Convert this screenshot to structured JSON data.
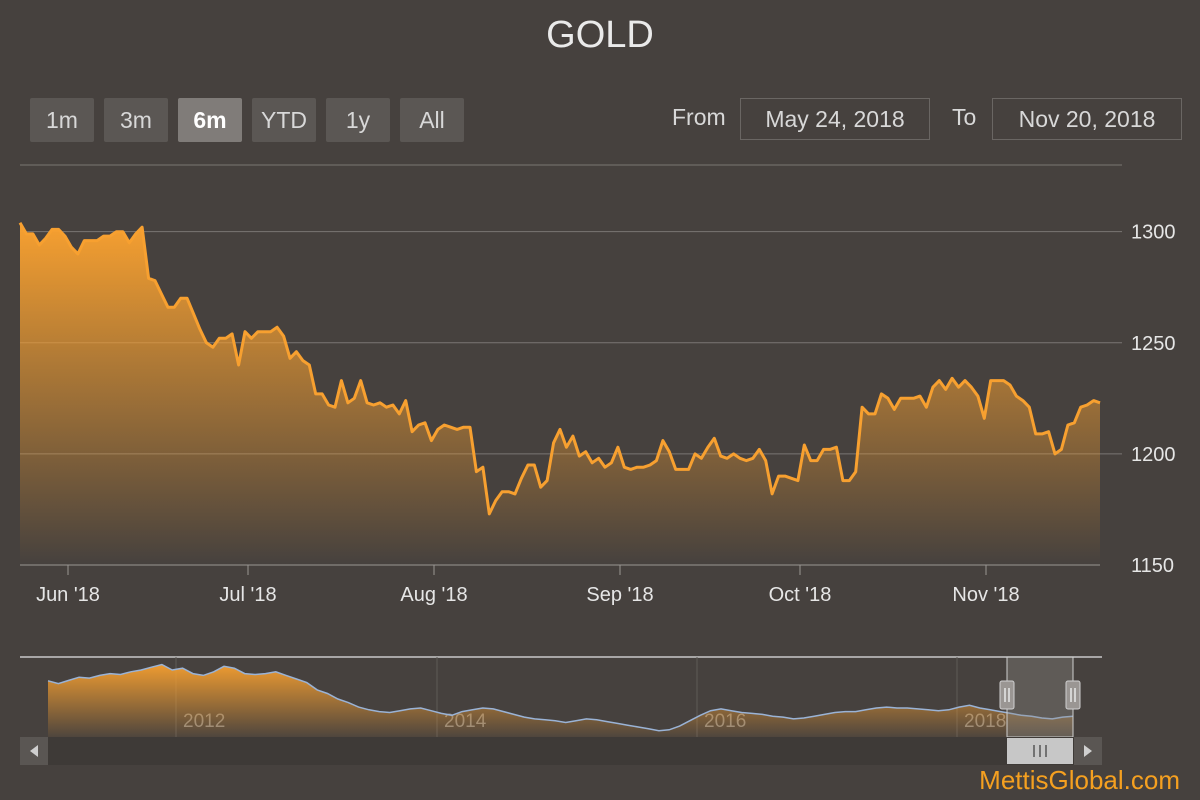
{
  "title": "GOLD",
  "range_buttons": [
    {
      "label": "1m",
      "active": false
    },
    {
      "label": "3m",
      "active": false
    },
    {
      "label": "6m",
      "active": true
    },
    {
      "label": "YTD",
      "active": false
    },
    {
      "label": "1y",
      "active": false
    },
    {
      "label": "All",
      "active": false
    }
  ],
  "range_inputs": {
    "from_label": "From",
    "from_value": "May 24, 2018",
    "to_label": "To",
    "to_value": "Nov 20, 2018"
  },
  "credit": "MettisGlobal.com",
  "colors": {
    "background": "#46413e",
    "line": "#f7a030",
    "navigator_line": "#9ab3d6",
    "credit": "#f5a020"
  },
  "chart_data": {
    "type": "area",
    "title": "GOLD",
    "x_start": "2018-05-24",
    "x_end": "2018-11-20",
    "ylim": [
      1150,
      1330
    ],
    "y_ticks": [
      1150,
      1200,
      1250,
      1300
    ],
    "y_tick_labels": [
      "1150",
      "1200",
      "1250",
      "1300"
    ],
    "x_ticks": [
      {
        "date": "2018-06-01",
        "label": "Jun '18"
      },
      {
        "date": "2018-07-01",
        "label": "Jul '18"
      },
      {
        "date": "2018-08-01",
        "label": "Aug '18"
      },
      {
        "date": "2018-09-01",
        "label": "Sep '18"
      },
      {
        "date": "2018-10-01",
        "label": "Oct '18"
      },
      {
        "date": "2018-11-01",
        "label": "Nov '18"
      }
    ],
    "grid": true,
    "series": [
      {
        "values": [
          1304,
          1299,
          1299,
          1294,
          1297,
          1301,
          1301,
          1298,
          1293,
          1290,
          1296,
          1296,
          1296,
          1298,
          1298,
          1300,
          1300,
          1295,
          1299,
          1302,
          1279,
          1278,
          1272,
          1266,
          1266,
          1270,
          1270,
          1263,
          1256,
          1250,
          1248,
          1252,
          1252,
          1254,
          1240,
          1255,
          1252,
          1255,
          1255,
          1255,
          1257,
          1253,
          1243,
          1246,
          1242,
          1240,
          1227,
          1227,
          1222,
          1221,
          1233,
          1223,
          1225,
          1233,
          1223,
          1222,
          1223,
          1221,
          1222,
          1218,
          1224,
          1210,
          1213,
          1214,
          1206,
          1211,
          1213,
          1212,
          1211,
          1212,
          1212,
          1192,
          1194,
          1173,
          1179,
          1183,
          1183,
          1182,
          1189,
          1195,
          1195,
          1185,
          1188,
          1205,
          1211,
          1203,
          1208,
          1199,
          1201,
          1196,
          1198,
          1194,
          1196,
          1203,
          1194,
          1193,
          1194,
          1194,
          1195,
          1197,
          1206,
          1201,
          1193,
          1193,
          1193,
          1200,
          1198,
          1203,
          1207,
          1199,
          1198,
          1200,
          1198,
          1197,
          1198,
          1202,
          1197,
          1182,
          1190,
          1190,
          1189,
          1188,
          1204,
          1197,
          1197,
          1202,
          1202,
          1203,
          1188,
          1188,
          1192,
          1221,
          1218,
          1218,
          1227,
          1225,
          1220,
          1225,
          1225,
          1225,
          1226,
          1221,
          1230,
          1233,
          1229,
          1234,
          1230,
          1233,
          1230,
          1226,
          1216,
          1233,
          1233,
          1233,
          1231,
          1226,
          1224,
          1221,
          1209,
          1209,
          1210,
          1200,
          1202,
          1213,
          1214,
          1221,
          1222,
          1224,
          1223
        ]
      }
    ],
    "navigator": {
      "ticks": [
        "2012",
        "2014",
        "2016",
        "2018"
      ],
      "values": [
        1620,
        1590,
        1625,
        1660,
        1650,
        1680,
        1700,
        1690,
        1720,
        1740,
        1770,
        1800,
        1740,
        1760,
        1700,
        1680,
        1720,
        1780,
        1760,
        1700,
        1690,
        1700,
        1720,
        1680,
        1640,
        1600,
        1520,
        1480,
        1420,
        1380,
        1330,
        1300,
        1280,
        1270,
        1290,
        1310,
        1320,
        1290,
        1260,
        1240,
        1280,
        1300,
        1320,
        1310,
        1280,
        1250,
        1220,
        1200,
        1190,
        1180,
        1160,
        1180,
        1200,
        1190,
        1170,
        1150,
        1130,
        1110,
        1090,
        1070,
        1080,
        1120,
        1180,
        1240,
        1290,
        1310,
        1290,
        1270,
        1260,
        1250,
        1230,
        1220,
        1200,
        1210,
        1230,
        1250,
        1270,
        1280,
        1280,
        1300,
        1320,
        1330,
        1320,
        1320,
        1310,
        1300,
        1290,
        1300,
        1330,
        1350,
        1320,
        1300,
        1280,
        1260,
        1240,
        1230,
        1210,
        1200,
        1220,
        1230
      ],
      "selected_range": [
        "2018-05-24",
        "2018-11-20"
      ]
    }
  }
}
